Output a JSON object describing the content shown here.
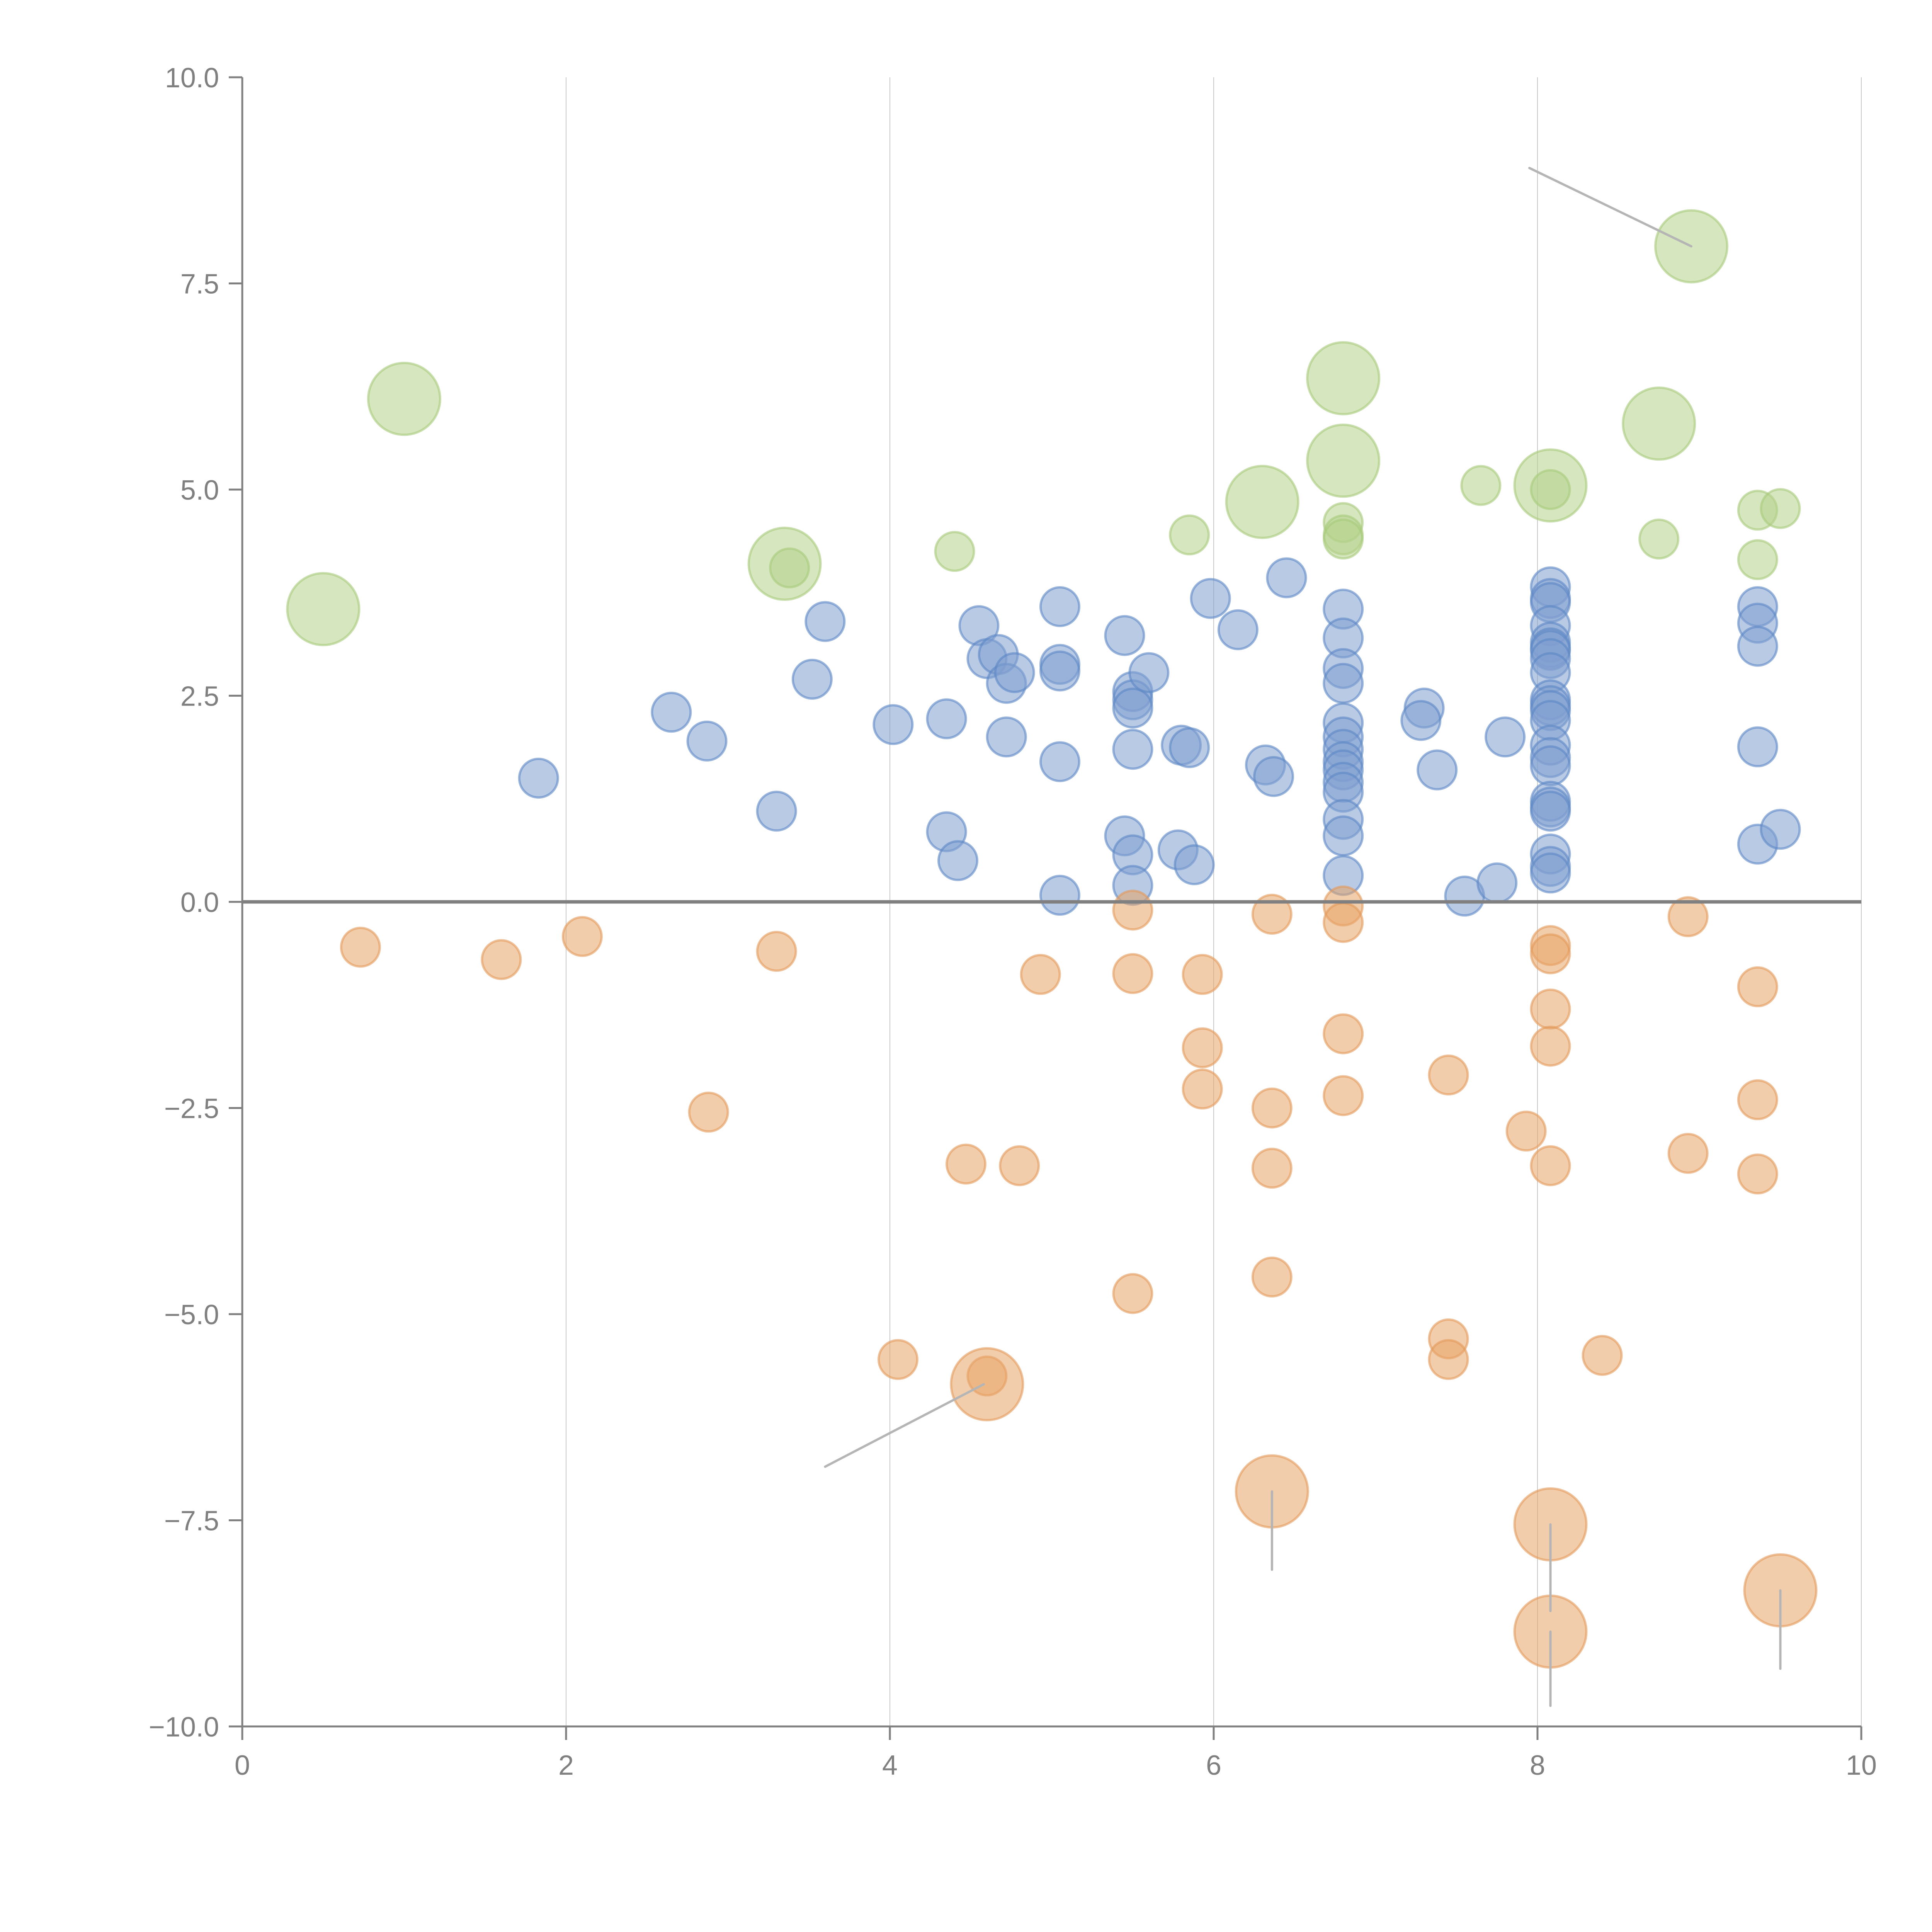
{
  "chart_data": {
    "type": "scatter",
    "subtype": "bubble",
    "title": "",
    "xlabel": "",
    "ylabel": "",
    "xlim": [
      0,
      10
    ],
    "ylim": [
      -10,
      10
    ],
    "x_ticks": [
      "0",
      "2",
      "4",
      "6",
      "8",
      "10"
    ],
    "x_tick_values": [
      0,
      2,
      4,
      6,
      8,
      10
    ],
    "y_ticks": [
      "10.0",
      "7.5",
      "5.0",
      "2.5",
      "0.0",
      "−2.5",
      "−5.0",
      "−7.5",
      "−10.0"
    ],
    "y_tick_values": [
      10,
      7.5,
      5,
      2.5,
      0,
      -2.5,
      -5,
      -7.5,
      -10
    ],
    "grid": "vertical",
    "zero_line": true,
    "legend": "none",
    "size_scale_note": "size 1 = small bubble, size 2 = large bubble",
    "series": [
      {
        "name": "green",
        "color": "#b5d28a",
        "stroke": "#a6c97a",
        "points": [
          {
            "x": 0.5,
            "y": 3.55,
            "size": 2
          },
          {
            "x": 1.0,
            "y": 6.1,
            "size": 2
          },
          {
            "x": 3.35,
            "y": 4.1,
            "size": 2
          },
          {
            "x": 3.38,
            "y": 4.05,
            "size": 1
          },
          {
            "x": 4.4,
            "y": 4.25,
            "size": 1
          },
          {
            "x": 5.85,
            "y": 4.45,
            "size": 1
          },
          {
            "x": 6.3,
            "y": 4.85,
            "size": 2
          },
          {
            "x": 6.8,
            "y": 6.35,
            "size": 2
          },
          {
            "x": 6.8,
            "y": 5.35,
            "size": 2
          },
          {
            "x": 6.8,
            "y": 4.6,
            "size": 1
          },
          {
            "x": 6.8,
            "y": 4.45,
            "size": 1
          },
          {
            "x": 6.8,
            "y": 4.4,
            "size": 1
          },
          {
            "x": 7.65,
            "y": 5.05,
            "size": 1
          },
          {
            "x": 8.08,
            "y": 5.05,
            "size": 2
          },
          {
            "x": 8.08,
            "y": 5.0,
            "size": 1
          },
          {
            "x": 8.95,
            "y": 7.95,
            "size": 2
          },
          {
            "x": 8.75,
            "y": 5.8,
            "size": 2
          },
          {
            "x": 8.75,
            "y": 4.4,
            "size": 1
          },
          {
            "x": 9.36,
            "y": 4.75,
            "size": 1
          },
          {
            "x": 9.5,
            "y": 4.77,
            "size": 1
          },
          {
            "x": 9.36,
            "y": 4.15,
            "size": 1
          }
        ]
      },
      {
        "name": "blue",
        "color": "#7f9fcf",
        "stroke": "#5b87c5",
        "points": [
          {
            "x": 1.83,
            "y": 1.5,
            "size": 1
          },
          {
            "x": 2.65,
            "y": 2.3,
            "size": 1
          },
          {
            "x": 2.87,
            "y": 1.95,
            "size": 1
          },
          {
            "x": 3.3,
            "y": 1.1,
            "size": 1
          },
          {
            "x": 3.52,
            "y": 2.7,
            "size": 1
          },
          {
            "x": 3.6,
            "y": 3.4,
            "size": 1
          },
          {
            "x": 4.02,
            "y": 2.15,
            "size": 1
          },
          {
            "x": 4.35,
            "y": 2.22,
            "size": 1
          },
          {
            "x": 4.35,
            "y": 0.85,
            "size": 1
          },
          {
            "x": 4.42,
            "y": 0.5,
            "size": 1
          },
          {
            "x": 4.55,
            "y": 3.35,
            "size": 1
          },
          {
            "x": 4.6,
            "y": 2.95,
            "size": 1
          },
          {
            "x": 4.67,
            "y": 3.0,
            "size": 1
          },
          {
            "x": 4.72,
            "y": 2.65,
            "size": 1
          },
          {
            "x": 4.77,
            "y": 2.78,
            "size": 1
          },
          {
            "x": 4.72,
            "y": 2.0,
            "size": 1
          },
          {
            "x": 5.05,
            "y": 3.58,
            "size": 1
          },
          {
            "x": 5.05,
            "y": 2.88,
            "size": 1
          },
          {
            "x": 5.05,
            "y": 2.8,
            "size": 1
          },
          {
            "x": 5.05,
            "y": 1.7,
            "size": 1
          },
          {
            "x": 5.05,
            "y": 0.08,
            "size": 1
          },
          {
            "x": 5.45,
            "y": 3.23,
            "size": 1
          },
          {
            "x": 5.5,
            "y": 2.55,
            "size": 1
          },
          {
            "x": 5.5,
            "y": 2.45,
            "size": 1
          },
          {
            "x": 5.5,
            "y": 2.35,
            "size": 1
          },
          {
            "x": 5.6,
            "y": 2.78,
            "size": 1
          },
          {
            "x": 5.5,
            "y": 1.85,
            "size": 1
          },
          {
            "x": 5.45,
            "y": 0.8,
            "size": 1
          },
          {
            "x": 5.5,
            "y": 0.57,
            "size": 1
          },
          {
            "x": 5.5,
            "y": 0.2,
            "size": 1
          },
          {
            "x": 5.8,
            "y": 1.9,
            "size": 1
          },
          {
            "x": 5.85,
            "y": 1.87,
            "size": 1
          },
          {
            "x": 5.78,
            "y": 0.63,
            "size": 1
          },
          {
            "x": 5.88,
            "y": 0.45,
            "size": 1
          },
          {
            "x": 5.98,
            "y": 3.68,
            "size": 1
          },
          {
            "x": 6.15,
            "y": 3.3,
            "size": 1
          },
          {
            "x": 6.32,
            "y": 1.66,
            "size": 1
          },
          {
            "x": 6.37,
            "y": 1.52,
            "size": 1
          },
          {
            "x": 6.45,
            "y": 3.93,
            "size": 1
          },
          {
            "x": 6.8,
            "y": 3.55,
            "size": 1
          },
          {
            "x": 6.8,
            "y": 3.2,
            "size": 1
          },
          {
            "x": 6.8,
            "y": 2.83,
            "size": 1
          },
          {
            "x": 6.8,
            "y": 2.65,
            "size": 1
          },
          {
            "x": 6.8,
            "y": 2.17,
            "size": 1
          },
          {
            "x": 6.8,
            "y": 2.0,
            "size": 1
          },
          {
            "x": 6.8,
            "y": 1.85,
            "size": 1
          },
          {
            "x": 6.8,
            "y": 1.7,
            "size": 1
          },
          {
            "x": 6.8,
            "y": 1.6,
            "size": 1
          },
          {
            "x": 6.8,
            "y": 1.45,
            "size": 1
          },
          {
            "x": 6.8,
            "y": 1.33,
            "size": 1
          },
          {
            "x": 6.8,
            "y": 1.0,
            "size": 1
          },
          {
            "x": 6.8,
            "y": 0.8,
            "size": 1
          },
          {
            "x": 6.8,
            "y": 0.32,
            "size": 1
          },
          {
            "x": 7.3,
            "y": 2.35,
            "size": 1
          },
          {
            "x": 7.28,
            "y": 2.2,
            "size": 1
          },
          {
            "x": 7.38,
            "y": 1.6,
            "size": 1
          },
          {
            "x": 7.55,
            "y": 0.07,
            "size": 1
          },
          {
            "x": 7.75,
            "y": 0.23,
            "size": 1
          },
          {
            "x": 7.8,
            "y": 2.0,
            "size": 1
          },
          {
            "x": 8.08,
            "y": 3.82,
            "size": 1
          },
          {
            "x": 8.08,
            "y": 3.68,
            "size": 1
          },
          {
            "x": 8.08,
            "y": 3.63,
            "size": 1
          },
          {
            "x": 8.08,
            "y": 3.35,
            "size": 1
          },
          {
            "x": 8.08,
            "y": 3.15,
            "size": 1
          },
          {
            "x": 8.08,
            "y": 3.08,
            "size": 1
          },
          {
            "x": 8.08,
            "y": 3.05,
            "size": 1
          },
          {
            "x": 8.08,
            "y": 2.95,
            "size": 1
          },
          {
            "x": 8.08,
            "y": 2.78,
            "size": 1
          },
          {
            "x": 8.08,
            "y": 2.45,
            "size": 1
          },
          {
            "x": 8.08,
            "y": 2.38,
            "size": 1
          },
          {
            "x": 8.08,
            "y": 2.32,
            "size": 1
          },
          {
            "x": 8.08,
            "y": 2.2,
            "size": 1
          },
          {
            "x": 8.08,
            "y": 1.9,
            "size": 1
          },
          {
            "x": 8.08,
            "y": 1.75,
            "size": 1
          },
          {
            "x": 8.08,
            "y": 1.65,
            "size": 1
          },
          {
            "x": 8.08,
            "y": 1.22,
            "size": 1
          },
          {
            "x": 8.08,
            "y": 1.15,
            "size": 1
          },
          {
            "x": 8.08,
            "y": 1.1,
            "size": 1
          },
          {
            "x": 8.08,
            "y": 0.58,
            "size": 1
          },
          {
            "x": 8.08,
            "y": 0.43,
            "size": 1
          },
          {
            "x": 8.08,
            "y": 0.35,
            "size": 1
          },
          {
            "x": 9.36,
            "y": 3.58,
            "size": 1
          },
          {
            "x": 9.36,
            "y": 3.38,
            "size": 1
          },
          {
            "x": 9.36,
            "y": 3.1,
            "size": 1
          },
          {
            "x": 9.36,
            "y": 1.88,
            "size": 1
          },
          {
            "x": 9.36,
            "y": 0.7,
            "size": 1
          },
          {
            "x": 9.5,
            "y": 0.88,
            "size": 1
          }
        ]
      },
      {
        "name": "orange",
        "color": "#e8a466",
        "stroke": "#e39a5a",
        "points": [
          {
            "x": 0.73,
            "y": -0.55,
            "size": 1
          },
          {
            "x": 1.6,
            "y": -0.7,
            "size": 1
          },
          {
            "x": 2.1,
            "y": -0.42,
            "size": 1
          },
          {
            "x": 3.3,
            "y": -0.6,
            "size": 1
          },
          {
            "x": 2.88,
            "y": -2.55,
            "size": 1
          },
          {
            "x": 4.05,
            "y": -5.55,
            "size": 1
          },
          {
            "x": 4.6,
            "y": -5.75,
            "size": 1
          },
          {
            "x": 4.6,
            "y": -5.85,
            "size": 2
          },
          {
            "x": 4.47,
            "y": -3.18,
            "size": 1
          },
          {
            "x": 4.8,
            "y": -3.2,
            "size": 1
          },
          {
            "x": 4.93,
            "y": -0.88,
            "size": 1
          },
          {
            "x": 5.5,
            "y": -0.1,
            "size": 1
          },
          {
            "x": 5.5,
            "y": -0.87,
            "size": 1
          },
          {
            "x": 5.5,
            "y": -4.75,
            "size": 1
          },
          {
            "x": 5.93,
            "y": -0.88,
            "size": 1
          },
          {
            "x": 5.93,
            "y": -1.77,
            "size": 1
          },
          {
            "x": 5.93,
            "y": -2.27,
            "size": 1
          },
          {
            "x": 6.36,
            "y": -0.15,
            "size": 1
          },
          {
            "x": 6.36,
            "y": -2.5,
            "size": 1
          },
          {
            "x": 6.36,
            "y": -3.23,
            "size": 1
          },
          {
            "x": 6.36,
            "y": -4.55,
            "size": 1
          },
          {
            "x": 6.36,
            "y": -7.15,
            "size": 2
          },
          {
            "x": 6.8,
            "y": -0.05,
            "size": 1
          },
          {
            "x": 6.8,
            "y": -0.25,
            "size": 1
          },
          {
            "x": 6.8,
            "y": -1.6,
            "size": 1
          },
          {
            "x": 6.8,
            "y": -2.35,
            "size": 1
          },
          {
            "x": 7.45,
            "y": -2.1,
            "size": 1
          },
          {
            "x": 7.45,
            "y": -5.3,
            "size": 1
          },
          {
            "x": 7.45,
            "y": -5.55,
            "size": 1
          },
          {
            "x": 7.93,
            "y": -2.78,
            "size": 1
          },
          {
            "x": 8.08,
            "y": -0.53,
            "size": 1
          },
          {
            "x": 8.08,
            "y": -0.63,
            "size": 1
          },
          {
            "x": 8.08,
            "y": -1.3,
            "size": 1
          },
          {
            "x": 8.08,
            "y": -1.75,
            "size": 1
          },
          {
            "x": 8.08,
            "y": -3.2,
            "size": 1
          },
          {
            "x": 8.08,
            "y": -7.55,
            "size": 2
          },
          {
            "x": 8.08,
            "y": -8.85,
            "size": 2
          },
          {
            "x": 8.4,
            "y": -5.5,
            "size": 1
          },
          {
            "x": 8.93,
            "y": -0.18,
            "size": 1
          },
          {
            "x": 8.93,
            "y": -3.05,
            "size": 1
          },
          {
            "x": 9.36,
            "y": -1.03,
            "size": 1
          },
          {
            "x": 9.36,
            "y": -2.4,
            "size": 1
          },
          {
            "x": 9.36,
            "y": -3.3,
            "size": 1
          },
          {
            "x": 9.5,
            "y": -8.35,
            "size": 2
          }
        ]
      }
    ],
    "leader_lines": [
      {
        "from": [
          8.95,
          7.95
        ],
        "to": [
          7.95,
          8.9
        ],
        "color": "#b5b5b5"
      },
      {
        "from": [
          4.58,
          -5.85
        ],
        "to": [
          3.6,
          -6.85
        ],
        "color": "#b5b5b5"
      },
      {
        "from": [
          6.36,
          -7.15
        ],
        "to": [
          6.36,
          -8.1
        ],
        "color": "#b5b5b5"
      },
      {
        "from": [
          8.08,
          -7.55
        ],
        "to": [
          8.08,
          -8.6
        ],
        "color": "#b5b5b5"
      },
      {
        "from": [
          8.08,
          -8.85
        ],
        "to": [
          8.08,
          -9.75
        ],
        "color": "#b5b5b5"
      },
      {
        "from": [
          9.5,
          -8.35
        ],
        "to": [
          9.5,
          -9.3
        ],
        "color": "#b5b5b5"
      }
    ]
  }
}
